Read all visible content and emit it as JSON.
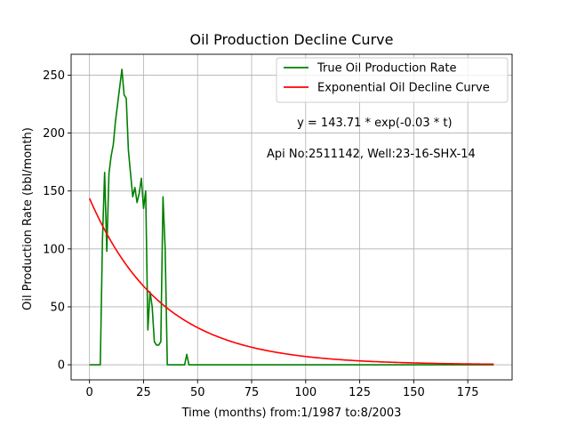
{
  "chart_data": {
    "type": "line",
    "title": "Oil Production Decline Curve",
    "xlabel": "Time (months) from:1/1987 to:8/2003",
    "ylabel": "Oil Production Rate (bbl/month)",
    "xlim": [
      -8.5,
      195.5
    ],
    "ylim": [
      -13,
      268
    ],
    "xticks": [
      0,
      25,
      50,
      75,
      100,
      125,
      150,
      175
    ],
    "yticks": [
      0,
      50,
      100,
      150,
      200,
      250
    ],
    "grid": true,
    "legend_position": "top-right",
    "series": [
      {
        "name": "True Oil Production Rate",
        "color": "#008000",
        "x": [
          0,
          1,
          2,
          3,
          4,
          5,
          6,
          7,
          8,
          9,
          10,
          11,
          12,
          13,
          14,
          15,
          16,
          17,
          18,
          19,
          20,
          21,
          22,
          23,
          24,
          25,
          26,
          27,
          28,
          29,
          30,
          31,
          32,
          33,
          34,
          35,
          36,
          37,
          38,
          39,
          40,
          41,
          42,
          43,
          44,
          45,
          46,
          50,
          100,
          150,
          187
        ],
        "y": [
          0,
          0,
          0,
          0,
          0,
          0,
          108,
          166,
          98,
          165,
          180,
          190,
          210,
          225,
          240,
          255,
          233,
          230,
          185,
          165,
          145,
          153,
          140,
          148,
          161,
          135,
          150,
          30,
          63,
          50,
          20,
          17,
          17,
          20,
          145,
          100,
          0,
          0,
          0,
          0,
          0,
          0,
          0,
          0,
          0,
          9,
          0,
          0,
          0,
          0,
          0
        ]
      },
      {
        "name": "Exponential Oil Decline Curve",
        "color": "#ff0000",
        "equation": {
          "a": 143.71,
          "b": -0.03
        },
        "x_range": [
          0,
          187
        ]
      }
    ],
    "annotations": [
      {
        "text": "y = 143.71 * exp(-0.03 * t)",
        "x": 96,
        "y": 206
      },
      {
        "text": "Api No:2511142, Well:23-16-SHX-14",
        "x": 82,
        "y": 179
      }
    ]
  }
}
